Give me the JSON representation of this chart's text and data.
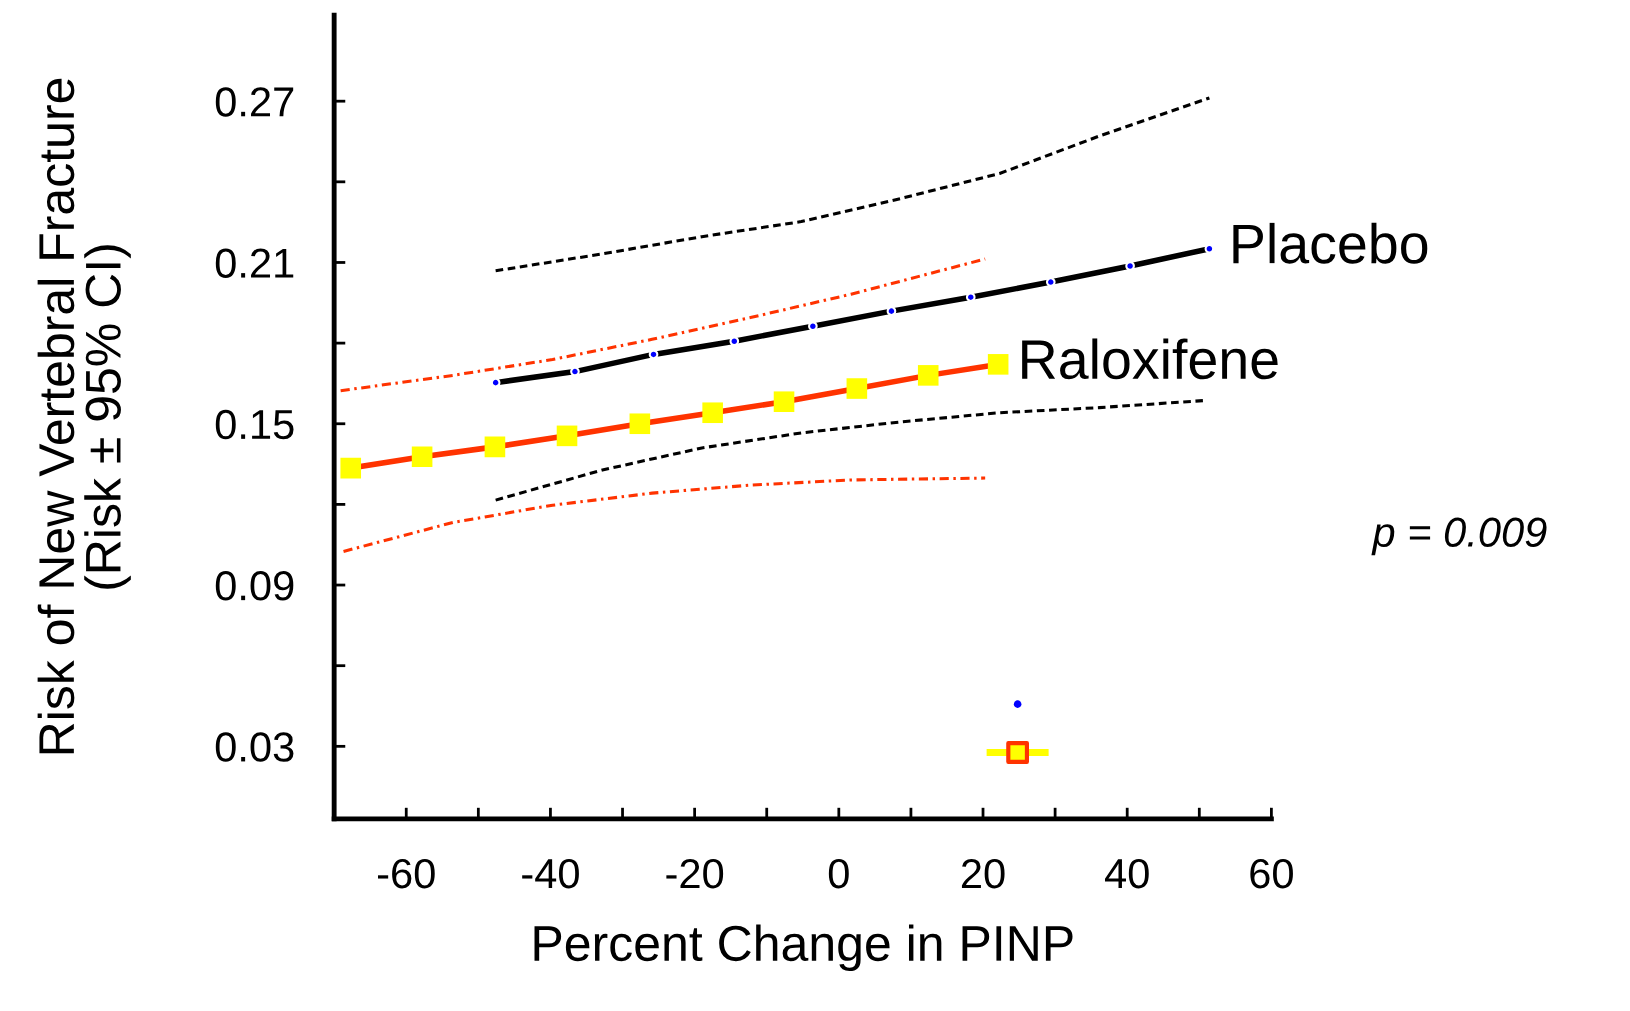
{
  "chart_data": {
    "type": "line",
    "xlabel": "Percent Change in PINP",
    "ylabel": "Risk of New Vertebral Fracture\n(Risk ± 95% CI)",
    "xlim": [
      -70,
      60
    ],
    "ylim": [
      0.003,
      0.302
    ],
    "xticks": [
      -60,
      {
        "value": -50,
        "label": null
      },
      -40,
      {
        "value": -30,
        "label": null
      },
      -20,
      {
        "value": -10,
        "label": null
      },
      0,
      {
        "value": 10,
        "label": null
      },
      20,
      {
        "value": 30,
        "label": null
      },
      40,
      {
        "value": 50,
        "label": null
      },
      60
    ],
    "yticks": [
      0.03,
      {
        "value": 0.06,
        "label": null
      },
      0.09,
      {
        "value": 0.12,
        "label": null
      },
      0.15,
      {
        "value": 0.18,
        "label": null
      },
      0.21,
      {
        "value": 0.24,
        "label": null
      },
      0.27
    ],
    "grid": false,
    "legend": false,
    "annotations": [
      "p = 0.009"
    ],
    "series": [
      {
        "name": "Placebo",
        "color": "#000000",
        "marker": "circle",
        "colors": [
          "#0000ff",
          "#0000ff",
          "#0000ff",
          "#0000ff",
          "#0000ff",
          "#0000ff",
          "#0000ff",
          "#0000ff",
          "#0000ff",
          "#0000ff"
        ],
        "line_style": "solid",
        "x": [
          -47.6,
          -36.6,
          -25.7,
          -14.5,
          -3.6,
          7.3,
          18.3,
          29.4,
          40.4,
          51.4
        ],
        "values": [
          0.1653,
          0.1694,
          0.1758,
          0.1807,
          0.1863,
          0.1919,
          0.1971,
          0.2027,
          0.2087,
          0.2151
        ]
      },
      {
        "name": "Raloxifene",
        "color": "#ff3300",
        "marker": "square",
        "colors": [
          "#ffff00",
          "#ffff00",
          "#ffff00",
          "#ffff00",
          "#ffff00",
          "#ffff00",
          "#ffff00",
          "#ffff00",
          "#ffff00",
          "#ffff00"
        ],
        "line_style": "solid",
        "x": [
          -67.7,
          -57.8,
          -47.7,
          -37.7,
          -27.6,
          -17.5,
          -7.6,
          2.5,
          12.4,
          22.1
        ],
        "values": [
          0.1335,
          0.1377,
          0.1414,
          0.1455,
          0.15,
          0.1541,
          0.1582,
          0.1631,
          0.168,
          0.1721
        ]
      },
      {
        "color": "#000000",
        "marker": "none",
        "line_style": "dashed",
        "x": [
          -47.6,
          -32.8,
          -19.0,
          -5.2,
          8.6,
          22.3,
          36.1,
          51.4
        ],
        "values": [
          0.2069,
          0.2132,
          0.2196,
          0.2252,
          0.2338,
          0.2431,
          0.257,
          0.2712
        ]
      },
      {
        "color": "#000000",
        "marker": "none",
        "line_style": "dashed",
        "x": [
          -47.6,
          -32.8,
          -19.0,
          -5.2,
          8.6,
          22.3,
          36.1,
          50.5
        ],
        "values": [
          0.1216,
          0.1328,
          0.141,
          0.1466,
          0.1507,
          0.1541,
          0.156,
          0.1586
        ]
      },
      {
        "color": "#ff3300",
        "marker": "none",
        "line_style": "dashdot",
        "x": [
          -69.1,
          -53.5,
          -39.7,
          -25.9,
          -12.1,
          1.7,
          20.3
        ],
        "values": [
          0.1623,
          0.168,
          0.1739,
          0.1814,
          0.1896,
          0.1982,
          0.2113
        ]
      },
      {
        "color": "#ff3300",
        "marker": "none",
        "line_style": "dashdot",
        "x": [
          -68.7,
          -53.5,
          -39.7,
          -25.9,
          -12.1,
          1.7,
          20.3
        ],
        "values": [
          0.1025,
          0.1133,
          0.1197,
          0.1242,
          0.1272,
          0.1291,
          0.1298
        ]
      },
      {
        "type": "scatter",
        "color": "#0000ff",
        "marker": "circle",
        "x": [
          24.8
        ],
        "values": [
          0.0457
        ]
      },
      {
        "type": "scatter",
        "color": "#ff3300",
        "marker": "square",
        "colors": [
          "#ffff00"
        ],
        "x": [
          24.8
        ],
        "values": [
          0.0277
        ],
        "xerrors": [
          4.3
        ]
      }
    ]
  }
}
